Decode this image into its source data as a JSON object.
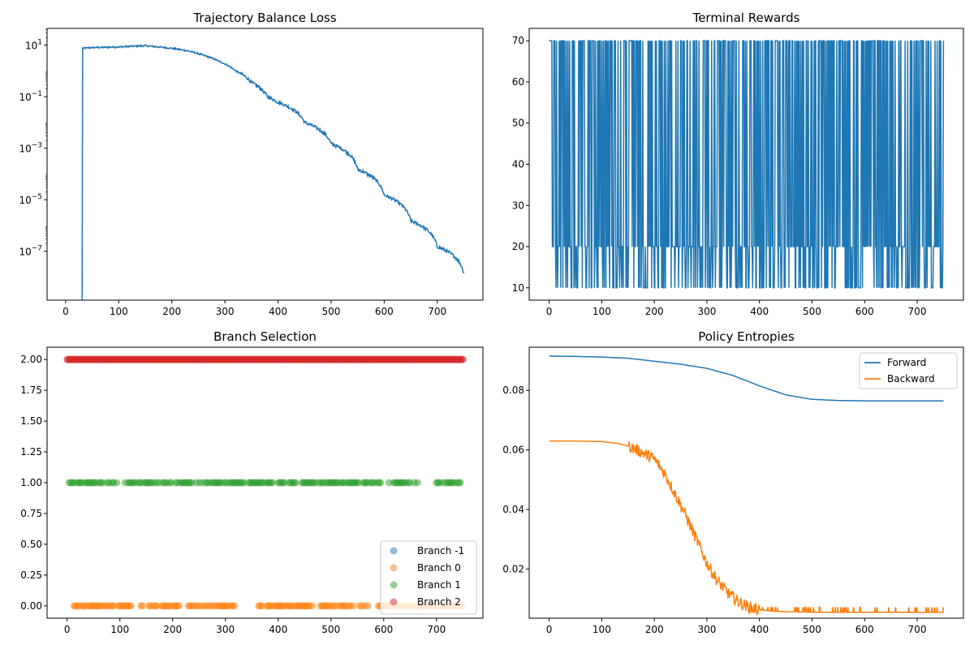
{
  "figure": {
    "background": "#ffffff"
  },
  "chart_data": [
    {
      "id": "loss",
      "type": "line",
      "title": "Trajectory Balance Loss",
      "xlabel": "",
      "ylabel": "",
      "yscale": "log",
      "xlim": [
        -35,
        786
      ],
      "ylim_log10": [
        -8.9,
        1.65
      ],
      "xticks": [
        0,
        100,
        200,
        300,
        400,
        500,
        600,
        700
      ],
      "yticks": [
        {
          "value": 10,
          "base": "10",
          "exp": "1"
        },
        {
          "value": 0.1,
          "base": "10",
          "exp": "−1"
        },
        {
          "value": 0.001,
          "base": "10",
          "exp": "−3"
        },
        {
          "value": 1e-05,
          "base": "10",
          "exp": "−5"
        },
        {
          "value": 1e-07,
          "base": "10",
          "exp": "−7"
        }
      ],
      "grid": false,
      "series": [
        {
          "color": "#1f77b4",
          "x": [
            31,
            32,
            50,
            100,
            150,
            200,
            230,
            260,
            290,
            320,
            350,
            380,
            400,
            450,
            500,
            550,
            600,
            650,
            700,
            750
          ],
          "y": [
            1e-09,
            7.5,
            8.0,
            8.5,
            9.5,
            7.5,
            6.0,
            4.0,
            2.3,
            1.0,
            0.35,
            0.1,
            0.06,
            0.01,
            0.0015,
            0.00015,
            1.5e-05,
            1.5e-06,
            1.5e-07,
            1.4e-08
          ]
        }
      ]
    },
    {
      "id": "rewards",
      "type": "line",
      "title": "Terminal Rewards",
      "xlabel": "",
      "ylabel": "",
      "xlim": [
        -38,
        788
      ],
      "ylim": [
        7,
        73
      ],
      "xticks": [
        0,
        100,
        200,
        300,
        400,
        500,
        600,
        700
      ],
      "yticks": [
        10,
        20,
        30,
        40,
        50,
        60,
        70
      ],
      "grid": false,
      "value_levels": [
        10,
        20,
        70
      ],
      "x_range": [
        0,
        750
      ],
      "series": [
        {
          "color": "#1f77b4"
        }
      ]
    },
    {
      "id": "branch",
      "type": "scatter",
      "title": "Branch Selection",
      "xlabel": "",
      "ylabel": "",
      "xlim": [
        -38,
        788
      ],
      "ylim": [
        -0.1,
        2.1
      ],
      "xticks": [
        0,
        100,
        200,
        300,
        400,
        500,
        600,
        700
      ],
      "yticks": [
        0.0,
        0.25,
        0.5,
        0.75,
        1.0,
        1.25,
        1.5,
        1.75,
        2.0
      ],
      "ytick_labels": [
        "0.00",
        "0.25",
        "0.50",
        "0.75",
        "1.00",
        "1.25",
        "1.50",
        "1.75",
        "2.00"
      ],
      "grid": false,
      "legend_position": "lower-right",
      "series": [
        {
          "name": "Branch -1",
          "color": "#1f77b4",
          "y": -1,
          "x_ranges": []
        },
        {
          "name": "Branch 0",
          "color": "#ff7f0e",
          "y": 0,
          "x_ranges": [
            [
              4,
              126
            ],
            [
              140,
              330
            ],
            [
              360,
              470
            ],
            [
              480,
              570
            ],
            [
              590,
              750
            ]
          ]
        },
        {
          "name": "Branch 1",
          "color": "#2ca02c",
          "y": 1,
          "x_ranges": [
            [
              4,
              96
            ],
            [
              110,
              390
            ],
            [
              400,
              475
            ],
            [
              480,
              595
            ],
            [
              610,
              665
            ],
            [
              700,
              748
            ]
          ]
        },
        {
          "name": "Branch 2",
          "color": "#d62728",
          "y": 2,
          "x_ranges": [
            [
              0,
              750
            ]
          ]
        }
      ]
    },
    {
      "id": "entropy",
      "type": "line",
      "title": "Policy Entropies",
      "xlabel": "",
      "ylabel": "",
      "xlim": [
        -38,
        788
      ],
      "ylim": [
        0.0035,
        0.0945
      ],
      "xticks": [
        0,
        100,
        200,
        300,
        400,
        500,
        600,
        700
      ],
      "yticks": [
        0.02,
        0.04,
        0.06,
        0.08
      ],
      "grid": false,
      "legend_position": "upper-right",
      "series": [
        {
          "name": "Forward",
          "color": "#1f77b4",
          "x": [
            0,
            50,
            100,
            150,
            200,
            250,
            300,
            350,
            400,
            450,
            500,
            550,
            600,
            650,
            700,
            750
          ],
          "y": [
            0.0915,
            0.0914,
            0.0912,
            0.0908,
            0.0898,
            0.0888,
            0.0874,
            0.085,
            0.0815,
            0.0785,
            0.077,
            0.0766,
            0.0765,
            0.0765,
            0.0765,
            0.0765
          ]
        },
        {
          "name": "Backward",
          "color": "#ff7f0e",
          "x": [
            0,
            50,
            100,
            130,
            150,
            170,
            200,
            220,
            240,
            260,
            280,
            300,
            320,
            340,
            360,
            380,
            400,
            430,
            460,
            500,
            550,
            600,
            650,
            700,
            750
          ],
          "y": [
            0.063,
            0.063,
            0.0628,
            0.0622,
            0.0613,
            0.0598,
            0.057,
            0.052,
            0.045,
            0.038,
            0.03,
            0.022,
            0.016,
            0.012,
            0.009,
            0.0072,
            0.0063,
            0.0058,
            0.0056,
            0.0055,
            0.0055,
            0.0055,
            0.0055,
            0.0055,
            0.0055
          ]
        }
      ]
    }
  ]
}
